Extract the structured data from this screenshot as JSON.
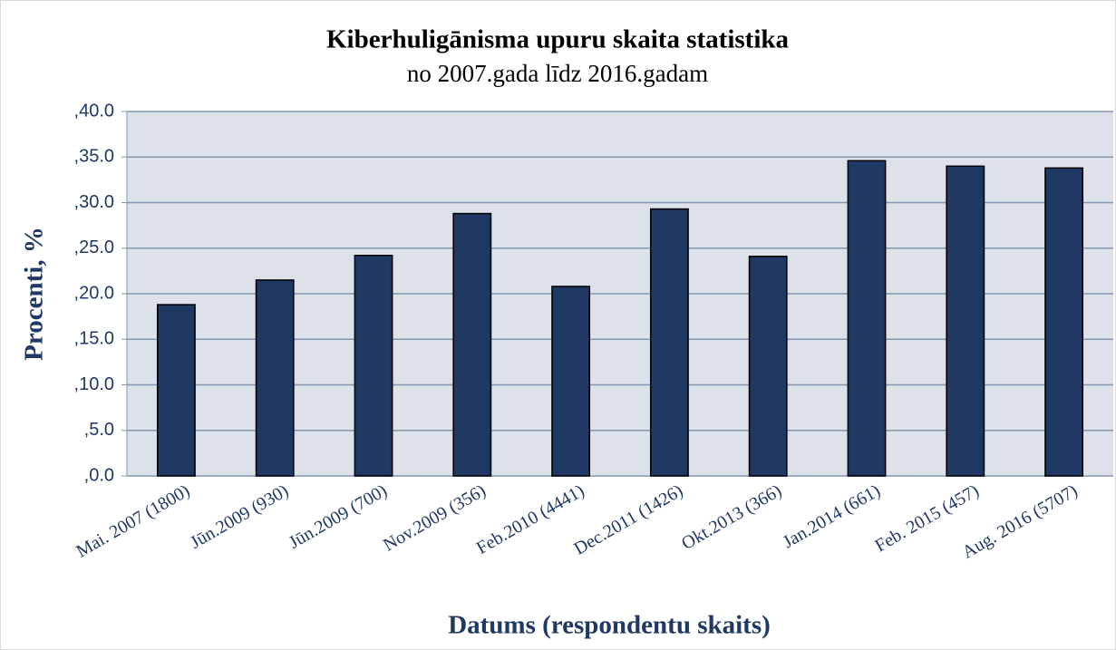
{
  "chart_data": {
    "type": "bar",
    "title": "Kiberhuligānisma upuru skaita statistika",
    "subtitle": "no 2007.gada līdz 2016.gadam",
    "x_label": "Datums (respondentu skaits)",
    "y_label": "Procenti, %",
    "categories": [
      "Mai. 2007 (1800)",
      "Jūn.2009 (930)",
      "Jūn.2009 (700)",
      "Nov.2009 (356)",
      "Feb.2010 (4441)",
      "Dec.2011 (1426)",
      "Okt.2013 (366)",
      "Jan.2014 (661)",
      "Feb. 2015 (457)",
      "Aug. 2016 (5707)"
    ],
    "values": [
      18.8,
      21.5,
      24.2,
      28.8,
      20.8,
      29.3,
      24.1,
      34.6,
      34.0,
      33.8
    ],
    "color": "#1f3864",
    "ylim": [
      0,
      40
    ],
    "yticks": [
      {
        "value": 0,
        "label": ",0.0"
      },
      {
        "value": 5,
        "label": ",5.0"
      },
      {
        "value": 10,
        "label": ",10.0"
      },
      {
        "value": 15,
        "label": ",15.0"
      },
      {
        "value": 20,
        "label": ",20.0"
      },
      {
        "value": 25,
        "label": ",25.0"
      },
      {
        "value": 30,
        "label": ",30.0"
      },
      {
        "value": 35,
        "label": ",35.0"
      },
      {
        "value": 40,
        "label": ",40.0"
      }
    ],
    "grid": true
  }
}
